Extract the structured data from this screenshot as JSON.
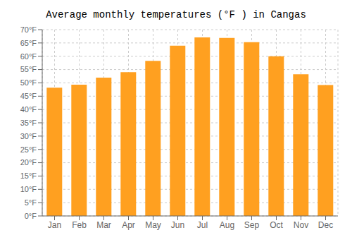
{
  "chart_data": {
    "type": "bar",
    "title": "Average monthly temperatures (°F ) in Cangas",
    "categories": [
      "Jan",
      "Feb",
      "Mar",
      "Apr",
      "May",
      "Jun",
      "Jul",
      "Aug",
      "Sep",
      "Oct",
      "Nov",
      "Dec"
    ],
    "values": [
      48.2,
      49.3,
      52.0,
      54.0,
      58.3,
      64.0,
      67.1,
      66.9,
      65.3,
      60.0,
      53.2,
      49.2
    ],
    "color": "#FFA020",
    "ylim": [
      0,
      70
    ],
    "yticks": [
      {
        "value": 0,
        "label": "0°F"
      },
      {
        "value": 5,
        "label": "5°F"
      },
      {
        "value": 10,
        "label": "10°F"
      },
      {
        "value": 15,
        "label": "15°F"
      },
      {
        "value": 20,
        "label": "20°F"
      },
      {
        "value": 25,
        "label": "25°F"
      },
      {
        "value": 30,
        "label": "30°F"
      },
      {
        "value": 35,
        "label": "35°F"
      },
      {
        "value": 40,
        "label": "40°F"
      },
      {
        "value": 45,
        "label": "45°F"
      },
      {
        "value": 50,
        "label": "50°F"
      },
      {
        "value": 55,
        "label": "55°F"
      },
      {
        "value": 60,
        "label": "60°F"
      },
      {
        "value": 65,
        "label": "65°F"
      },
      {
        "value": 70,
        "label": "70°F"
      }
    ],
    "grid": true
  }
}
